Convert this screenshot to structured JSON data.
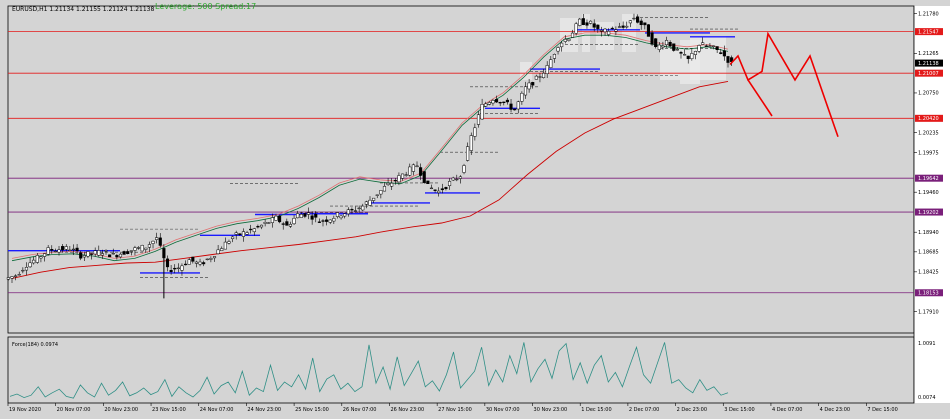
{
  "header": {
    "symbol_info": "EURUSD,H1  1.21134 1.21155 1.21124 1.21138",
    "leverage_info": "Leverage: 500 Spread:17"
  },
  "indicator": {
    "label": "Force(184) 0.0974"
  },
  "colors": {
    "background": "#d4d4d4",
    "candle": "#000000",
    "ma_slow": "#cc0000",
    "ma_fast": "#0d6b3a",
    "ma_faint": "#e07070",
    "level_red": "#e31a1a",
    "level_purple": "#7a1f7a",
    "level_blue": "#1a1aff",
    "projection": "#ee0000",
    "price_tag_current": "#000000",
    "force_line": "#2f8f86"
  },
  "chart_data": [
    {
      "type": "candlestick",
      "title": "EURUSD,H1",
      "ylim": [
        1.1763,
        1.2188
      ],
      "y_ticks": [
        "1.21780",
        "1.21547",
        "1.21265",
        "1.21007",
        "1.20750",
        "1.20420",
        "1.20235",
        "1.19975",
        "1.19642",
        "1.19460",
        "1.19202",
        "1.18940",
        "1.18685",
        "1.18425",
        "1.18153",
        "1.17910"
      ],
      "x_tick_labels": [
        "19 Nov 2020",
        "20 Nov 07:00",
        "20 Nov 23:00",
        "23 Nov 15:00",
        "24 Nov 07:00",
        "24 Nov 23:00",
        "25 Nov 15:00",
        "26 Nov 07:00",
        "26 Nov 23:00",
        "27 Nov 15:00",
        "30 Nov 07:00",
        "30 Nov 23:00",
        "1 Dec 15:00",
        "2 Dec 07:00",
        "2 Dec 23:00",
        "3 Dec 15:00",
        "4 Dec 07:00",
        "4 Dec 23:00",
        "7 Dec 15:00"
      ],
      "series": [
        {
          "kind": "close_path",
          "values": [
            1.1838,
            1.1852,
            1.186,
            1.1871,
            1.1872,
            1.1873,
            1.1864,
            1.1866,
            1.1869,
            1.1864,
            1.1868,
            1.1872,
            1.1875,
            1.1887,
            1.1845,
            1.1848,
            1.1858,
            1.1852,
            1.1862,
            1.1875,
            1.1888,
            1.1893,
            1.1898,
            1.1905,
            1.1912,
            1.1902,
            1.1917,
            1.1918,
            1.1908,
            1.1912,
            1.1918,
            1.1922,
            1.1928,
            1.194,
            1.1952,
            1.1962,
            1.1972,
            1.1981,
            1.1953,
            1.1947,
            1.1958,
            1.1968,
            1.2018,
            1.2058,
            1.2068,
            1.2063,
            1.2053,
            1.2081,
            1.2093,
            1.2108,
            1.2138,
            1.2148,
            1.2168,
            1.2165,
            1.2153,
            1.2158,
            1.216,
            1.2173,
            1.216,
            1.2133,
            1.2143,
            1.2128,
            1.2118,
            1.2138,
            1.2135,
            1.2128,
            1.2113
          ]
        },
        {
          "kind": "ma_fast",
          "values": [
            1.186,
            1.1865,
            1.1868,
            1.1869,
            1.1866,
            1.186,
            1.1863,
            1.1872,
            1.1884,
            1.1893,
            1.1902,
            1.1908,
            1.1912,
            1.1917,
            1.1928,
            1.1942,
            1.1958,
            1.1966,
            1.1962,
            1.196,
            1.1971,
            1.2003,
            1.2036,
            1.2059,
            1.2075,
            1.2098,
            1.2125,
            1.2148,
            1.2153,
            1.2153,
            1.215,
            1.2143,
            1.2138,
            1.2135,
            1.2138,
            1.2132
          ]
        },
        {
          "kind": "ma_slow",
          "values": [
            1.1834,
            1.1842,
            1.1848,
            1.1851,
            1.1854,
            1.1855,
            1.186,
            1.1865,
            1.187,
            1.1874,
            1.1878,
            1.1883,
            1.1888,
            1.1895,
            1.1901,
            1.1906,
            1.1915,
            1.1936,
            1.1969,
            1.1999,
            1.2023,
            1.2041,
            1.2055,
            1.2069,
            1.2083,
            1.209
          ]
        },
        {
          "kind": "projection",
          "values": [
            1.2112,
            1.2123,
            1.2092,
            1.2103,
            1.2152,
            1.2092,
            1.2123,
            1.2018
          ]
        },
        {
          "kind": "projection_branch",
          "values": [
            1.2092,
            1.2045
          ]
        }
      ],
      "levels": [
        {
          "price": 1.21547,
          "label": "1.21547",
          "color": "red"
        },
        {
          "price": 1.21007,
          "label": "1.21007",
          "color": "red"
        },
        {
          "price": 1.2042,
          "label": "1.20420",
          "color": "red"
        },
        {
          "price": 1.19642,
          "label": "1.19642",
          "color": "purple"
        },
        {
          "price": 1.19202,
          "label": "1.19202",
          "color": "purple"
        },
        {
          "price": 1.18153,
          "label": "1.18153",
          "color": "purple"
        }
      ],
      "current_price": {
        "value": 1.21138,
        "label": "1.21138"
      }
    },
    {
      "type": "line",
      "title": "Force(184) 0.0974",
      "y_ticks": [
        "1.0091",
        "0.0074"
      ],
      "series": [
        {
          "name": "Force",
          "values": [
            0.06,
            0.1,
            0.04,
            0.08,
            0.22,
            0.05,
            0.12,
            0.18,
            0.06,
            0.03,
            0.25,
            0.12,
            0.05,
            0.28,
            0.08,
            0.16,
            0.3,
            0.07,
            0.12,
            0.2,
            0.09,
            0.14,
            0.34,
            0.06,
            0.22,
            0.12,
            0.05,
            0.16,
            0.38,
            0.1,
            0.24,
            0.3,
            0.12,
            0.48,
            0.08,
            0.2,
            0.14,
            0.58,
            0.16,
            0.3,
            0.22,
            0.42,
            0.18,
            0.7,
            0.14,
            0.35,
            0.42,
            0.18,
            0.28,
            0.14,
            0.22,
            0.92,
            0.28,
            0.55,
            0.18,
            0.72,
            0.24,
            0.44,
            0.65,
            0.22,
            0.32,
            0.15,
            0.42,
            0.8,
            0.2,
            0.34,
            0.48,
            0.88,
            0.24,
            0.5,
            0.3,
            0.74,
            0.44,
            0.96,
            0.3,
            0.52,
            0.68,
            0.36,
            0.82,
            0.94,
            0.34,
            0.62,
            0.28,
            0.58,
            0.74,
            0.3,
            0.46,
            0.22,
            0.56,
            0.88,
            0.42,
            0.28,
            0.62,
            0.96,
            0.28,
            0.34,
            0.2,
            0.12,
            0.34,
            0.16,
            0.22,
            0.08,
            0.12
          ]
        }
      ]
    }
  ]
}
